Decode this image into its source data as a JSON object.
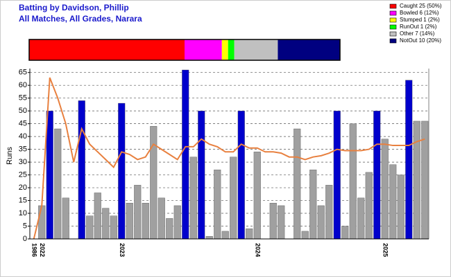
{
  "chart_data": {
    "type": "bar",
    "title": "Batting by Davidson, Phillip",
    "subtitle": "All Matches, All Grades, Narara",
    "y_label": "Runs",
    "categories": [
      "1986",
      "2022",
      null,
      null,
      null,
      null,
      null,
      null,
      null,
      null,
      null,
      "2023",
      null,
      null,
      null,
      null,
      null,
      null,
      null,
      null,
      null,
      null,
      null,
      null,
      null,
      null,
      null,
      null,
      "2024",
      null,
      null,
      null,
      null,
      null,
      null,
      null,
      null,
      null,
      null,
      null,
      null,
      null,
      null,
      null,
      "2025",
      null,
      null,
      null,
      null,
      null
    ],
    "values": [
      0,
      13,
      50,
      43,
      16,
      0,
      54,
      9,
      18,
      12,
      9,
      53,
      14,
      21,
      14,
      44,
      16,
      8,
      13,
      66,
      32,
      50,
      1,
      27,
      3,
      32,
      50,
      4,
      34,
      0,
      14,
      13,
      0,
      43,
      3,
      27,
      13,
      21,
      50,
      5,
      45,
      16,
      26,
      50,
      39,
      29,
      25,
      62,
      46,
      46
    ],
    "colors": [
      "#a0a0a0",
      "#a0a0a0",
      "#0000cc",
      "#a0a0a0",
      "#a0a0a0",
      "#a0a0a0",
      "#0000cc",
      "#a0a0a0",
      "#a0a0a0",
      "#a0a0a0",
      "#a0a0a0",
      "#0000cc",
      "#a0a0a0",
      "#a0a0a0",
      "#a0a0a0",
      "#a0a0a0",
      "#a0a0a0",
      "#a0a0a0",
      "#a0a0a0",
      "#0000cc",
      "#a0a0a0",
      "#0000cc",
      "#a0a0a0",
      "#a0a0a0",
      "#a0a0a0",
      "#a0a0a0",
      "#0000cc",
      "#a0a0a0",
      "#a0a0a0",
      "#a0a0a0",
      "#a0a0a0",
      "#a0a0a0",
      "#a0a0a0",
      "#a0a0a0",
      "#a0a0a0",
      "#a0a0a0",
      "#a0a0a0",
      "#a0a0a0",
      "#0000cc",
      "#a0a0a0",
      "#a0a0a0",
      "#a0a0a0",
      "#a0a0a0",
      "#0000cc",
      "#a0a0a0",
      "#a0a0a0",
      "#a0a0a0",
      "#0000cc",
      "#a0a0a0",
      "#a0a0a0"
    ],
    "line": {
      "color": "#e8803f",
      "values": [
        0,
        13,
        63,
        55,
        45,
        30,
        43,
        37,
        34,
        31,
        28,
        34,
        33,
        31,
        32,
        37,
        35,
        33,
        31,
        36,
        36,
        39,
        37,
        36,
        34,
        34,
        37,
        35.5,
        35.5,
        34,
        34,
        33.5,
        32,
        32,
        31,
        32,
        32.5,
        33.5,
        35,
        34.5,
        34.5,
        34.5,
        35,
        37,
        37,
        36.5,
        36.5,
        36.5,
        38,
        39
      ]
    },
    "ylim": [
      0,
      66
    ],
    "yticks": [
      0,
      5,
      10,
      15,
      20,
      25,
      30,
      35,
      40,
      45,
      50,
      55,
      60,
      65
    ],
    "grid": true,
    "dismissals": [
      {
        "label": "Caught 25 (50%)",
        "count": 25,
        "color": "#ff0000"
      },
      {
        "label": "Bowled 6 (12%)",
        "count": 6,
        "color": "#ff00ff"
      },
      {
        "label": "Stumped 1 (2%)",
        "count": 1,
        "color": "#ffff00"
      },
      {
        "label": "RunOut 1 (2%)",
        "count": 1,
        "color": "#00ff00"
      },
      {
        "label": "Other 7 (14%)",
        "count": 7,
        "color": "#c0c0c0"
      },
      {
        "label": "NotOut 10 (20%)",
        "count": 10,
        "color": "#000080"
      }
    ]
  }
}
